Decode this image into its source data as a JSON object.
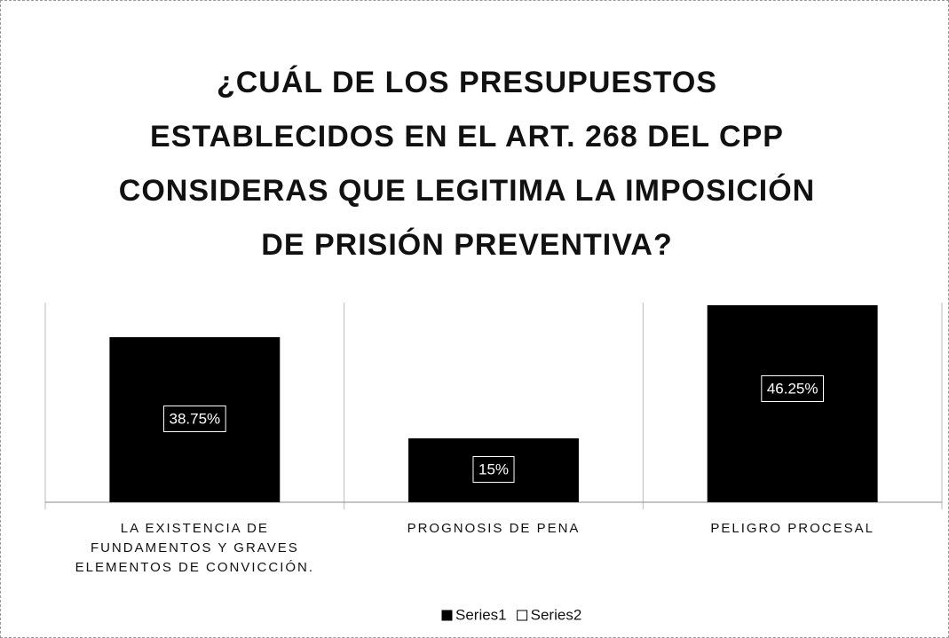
{
  "chart_data": {
    "type": "bar",
    "title": "¿CUÁL DE LOS PRESUPUESTOS ESTABLECIDOS EN EL ART. 268 DEL CPP CONSIDERAS QUE LEGITIMA LA IMPOSICIÓN DE PRISIÓN PREVENTIVA?",
    "categories": [
      "LA EXISTENCIA DE FUNDAMENTOS Y GRAVES ELEMENTOS DE CONVICCIÓN.",
      "PROGNOSIS DE PENA",
      "PELIGRO PROCESAL"
    ],
    "series": [
      {
        "name": "Series1",
        "color": "#000000",
        "values": [
          38.75,
          15,
          46.25
        ],
        "value_labels": [
          "38.75%",
          "15%",
          "46.25%"
        ]
      },
      {
        "name": "Series2",
        "color": "#ffffff",
        "values": [
          null,
          null,
          null
        ]
      }
    ],
    "ylim": [
      0,
      50
    ]
  }
}
